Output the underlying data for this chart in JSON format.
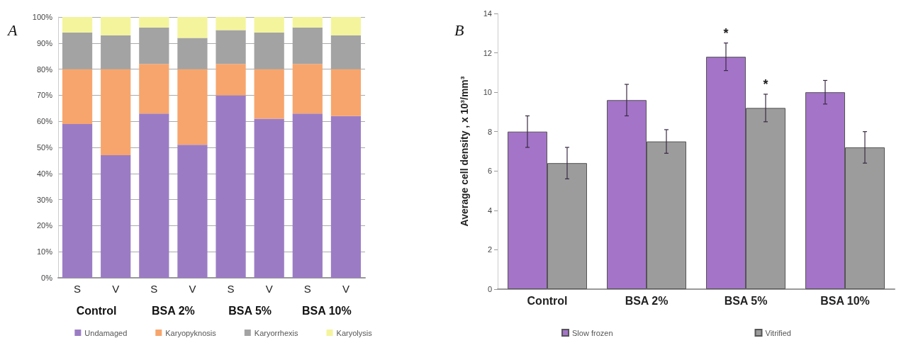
{
  "chart_data": [
    {
      "type": "bar",
      "title": "A",
      "stacked": true,
      "categories": [
        "S",
        "V",
        "S",
        "V",
        "S",
        "V",
        "S",
        "V"
      ],
      "annotations": [
        "Control",
        "BSA 2%",
        "BSA 5%",
        "BSA 10%"
      ],
      "series": [
        {
          "name": "Undamaged",
          "color": "#9b7cc4",
          "values": [
            59,
            47,
            63,
            51,
            70,
            61,
            63,
            62
          ]
        },
        {
          "name": "Karyopyknosis",
          "color": "#f7a56c",
          "values": [
            21,
            33,
            19,
            29,
            12,
            19,
            19,
            18
          ]
        },
        {
          "name": "Karyorrhexis",
          "color": "#a3a3a3",
          "values": [
            14,
            13,
            14,
            12,
            13,
            14,
            14,
            13
          ]
        },
        {
          "name": "Karyolysis",
          "color": "#f4f49c",
          "values": [
            6,
            7,
            4,
            8,
            5,
            6,
            4,
            7
          ]
        }
      ],
      "ylim": [
        0,
        100
      ],
      "yticks": [
        {
          "value": 0,
          "label": "0%"
        },
        {
          "value": 10,
          "label": "10%"
        },
        {
          "value": 20,
          "label": "20%"
        },
        {
          "value": 30,
          "label": "30%"
        },
        {
          "value": 40,
          "label": "40%"
        },
        {
          "value": 50,
          "label": "50%"
        },
        {
          "value": 60,
          "label": "60%"
        },
        {
          "value": 70,
          "label": "70%"
        },
        {
          "value": 80,
          "label": "80%"
        },
        {
          "value": 90,
          "label": "90%"
        },
        {
          "value": 100,
          "label": "100%"
        }
      ],
      "grid": "y",
      "legend": "bottom"
    },
    {
      "type": "bar",
      "title": "B",
      "ylabel": "Average cell density , x 10³/mm³",
      "categories": [
        "Control",
        "BSA 2%",
        "BSA 5%",
        "BSA 10%"
      ],
      "series": [
        {
          "name": "Slow frozen",
          "color": "#a474c8",
          "values": [
            8.0,
            9.6,
            11.8,
            10.0
          ],
          "errors": [
            0.8,
            0.8,
            0.7,
            0.6
          ]
        },
        {
          "name": "Vitrified",
          "color": "#9c9c9c",
          "values": [
            6.4,
            7.5,
            9.2,
            7.2
          ],
          "errors": [
            0.8,
            0.6,
            0.7,
            0.8
          ]
        }
      ],
      "annotations": [
        {
          "text": "*",
          "x": "BSA 5%",
          "y": 11.8
        },
        {
          "text": "*",
          "x": "BSA 5%",
          "y": 9.2
        }
      ],
      "ylim": [
        0,
        14
      ],
      "yticks": [
        0,
        2,
        4,
        6,
        8,
        10,
        12,
        14
      ],
      "grid": false,
      "legend": "bottom"
    }
  ]
}
